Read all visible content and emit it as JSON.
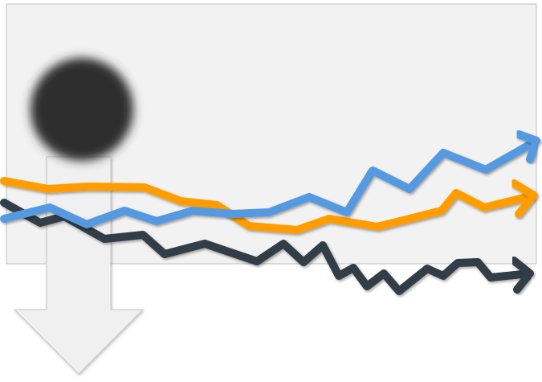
{
  "colors": {
    "panel_fill": "#f2f2f2",
    "panel_border": "#bdbdbd",
    "orange_line": "#ff9d00",
    "blue_line": "#5599e0",
    "dark_line": "#333d47",
    "blob": "#2f2f2f",
    "arrow_fill": "#f0f0f0",
    "arrow_border": "#c8c8c8"
  },
  "icons": {
    "trend_arrowheads": "arrow-right-icon",
    "down_arrow": "arrow-down-icon"
  }
}
